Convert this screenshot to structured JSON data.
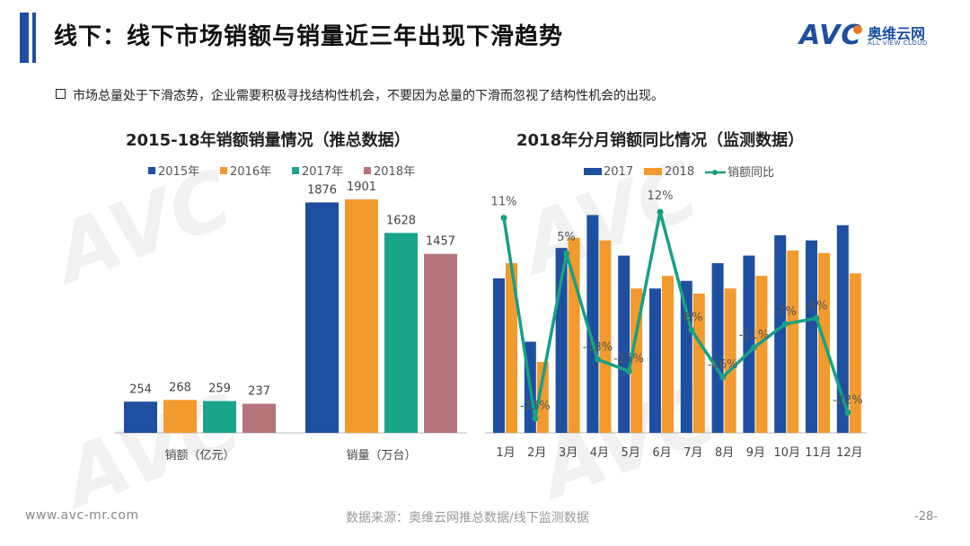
{
  "header": {
    "title": "线下：线下市场销额与销量近三年出现下滑趋势",
    "logo_text": "AVC",
    "logo_cn": "奥维云网",
    "logo_en": "ALL VIEW CLOUD"
  },
  "bullet": "市场总量处于下滑态势，企业需要积极寻找结构性机会，不要因为总量的下滑而忽视了结构性机会的出现。",
  "footer": {
    "website": "www.avc-mr.com",
    "source": "数据来源：奥维云网推总数据/线下监测数据",
    "page": "-28-"
  },
  "colors": {
    "blue": "#1e4fa0",
    "orange": "#f39a2c",
    "teal": "#1aa58a",
    "mauve": "#b5737a",
    "line": "#17a085"
  },
  "chart_data": [
    {
      "type": "bar",
      "title": "2015-18年销额销量情况（推总数据）",
      "categories": [
        "销额（亿元）",
        "销量（万台）"
      ],
      "series": [
        {
          "name": "2015年",
          "values": [
            254,
            1876
          ],
          "color": "#1e4fa0"
        },
        {
          "name": "2016年",
          "values": [
            268,
            1901
          ],
          "color": "#f39a2c"
        },
        {
          "name": "2017年",
          "values": [
            259,
            1628
          ],
          "color": "#1aa58a"
        },
        {
          "name": "2018年",
          "values": [
            237,
            1457
          ],
          "color": "#b5737a"
        }
      ],
      "legend": "top",
      "grid": false
    },
    {
      "type": "bar",
      "title": "2018年分月销额同比情况（监测数据）",
      "categories": [
        "1月",
        "2月",
        "3月",
        "4月",
        "5月",
        "6月",
        "7月",
        "8月",
        "9月",
        "10月",
        "11月",
        "12月"
      ],
      "series": [
        {
          "name": "2017",
          "type": "bar",
          "color": "#1e4fa0",
          "values": [
            0.61,
            0.36,
            0.73,
            0.86,
            0.7,
            0.57,
            0.6,
            0.67,
            0.7,
            0.78,
            0.76,
            0.82
          ]
        },
        {
          "name": "2018",
          "type": "bar",
          "color": "#f39a2c",
          "values": [
            0.67,
            0.28,
            0.77,
            0.76,
            0.57,
            0.62,
            0.55,
            0.57,
            0.62,
            0.72,
            0.71,
            0.63
          ]
        },
        {
          "name": "销额同比",
          "type": "line",
          "color": "#17a085",
          "values": [
            11,
            -23,
            5,
            -13,
            -15,
            12,
            -8,
            -16,
            -11,
            -7,
            -6,
            -22
          ],
          "labels": [
            "11%",
            "-23%",
            "5%",
            "-13%",
            "-15%",
            "12%",
            "-8%",
            "-16%",
            "-11%",
            "-7%",
            "-6%",
            "-22%"
          ]
        }
      ],
      "legend": "top",
      "grid": false
    }
  ]
}
